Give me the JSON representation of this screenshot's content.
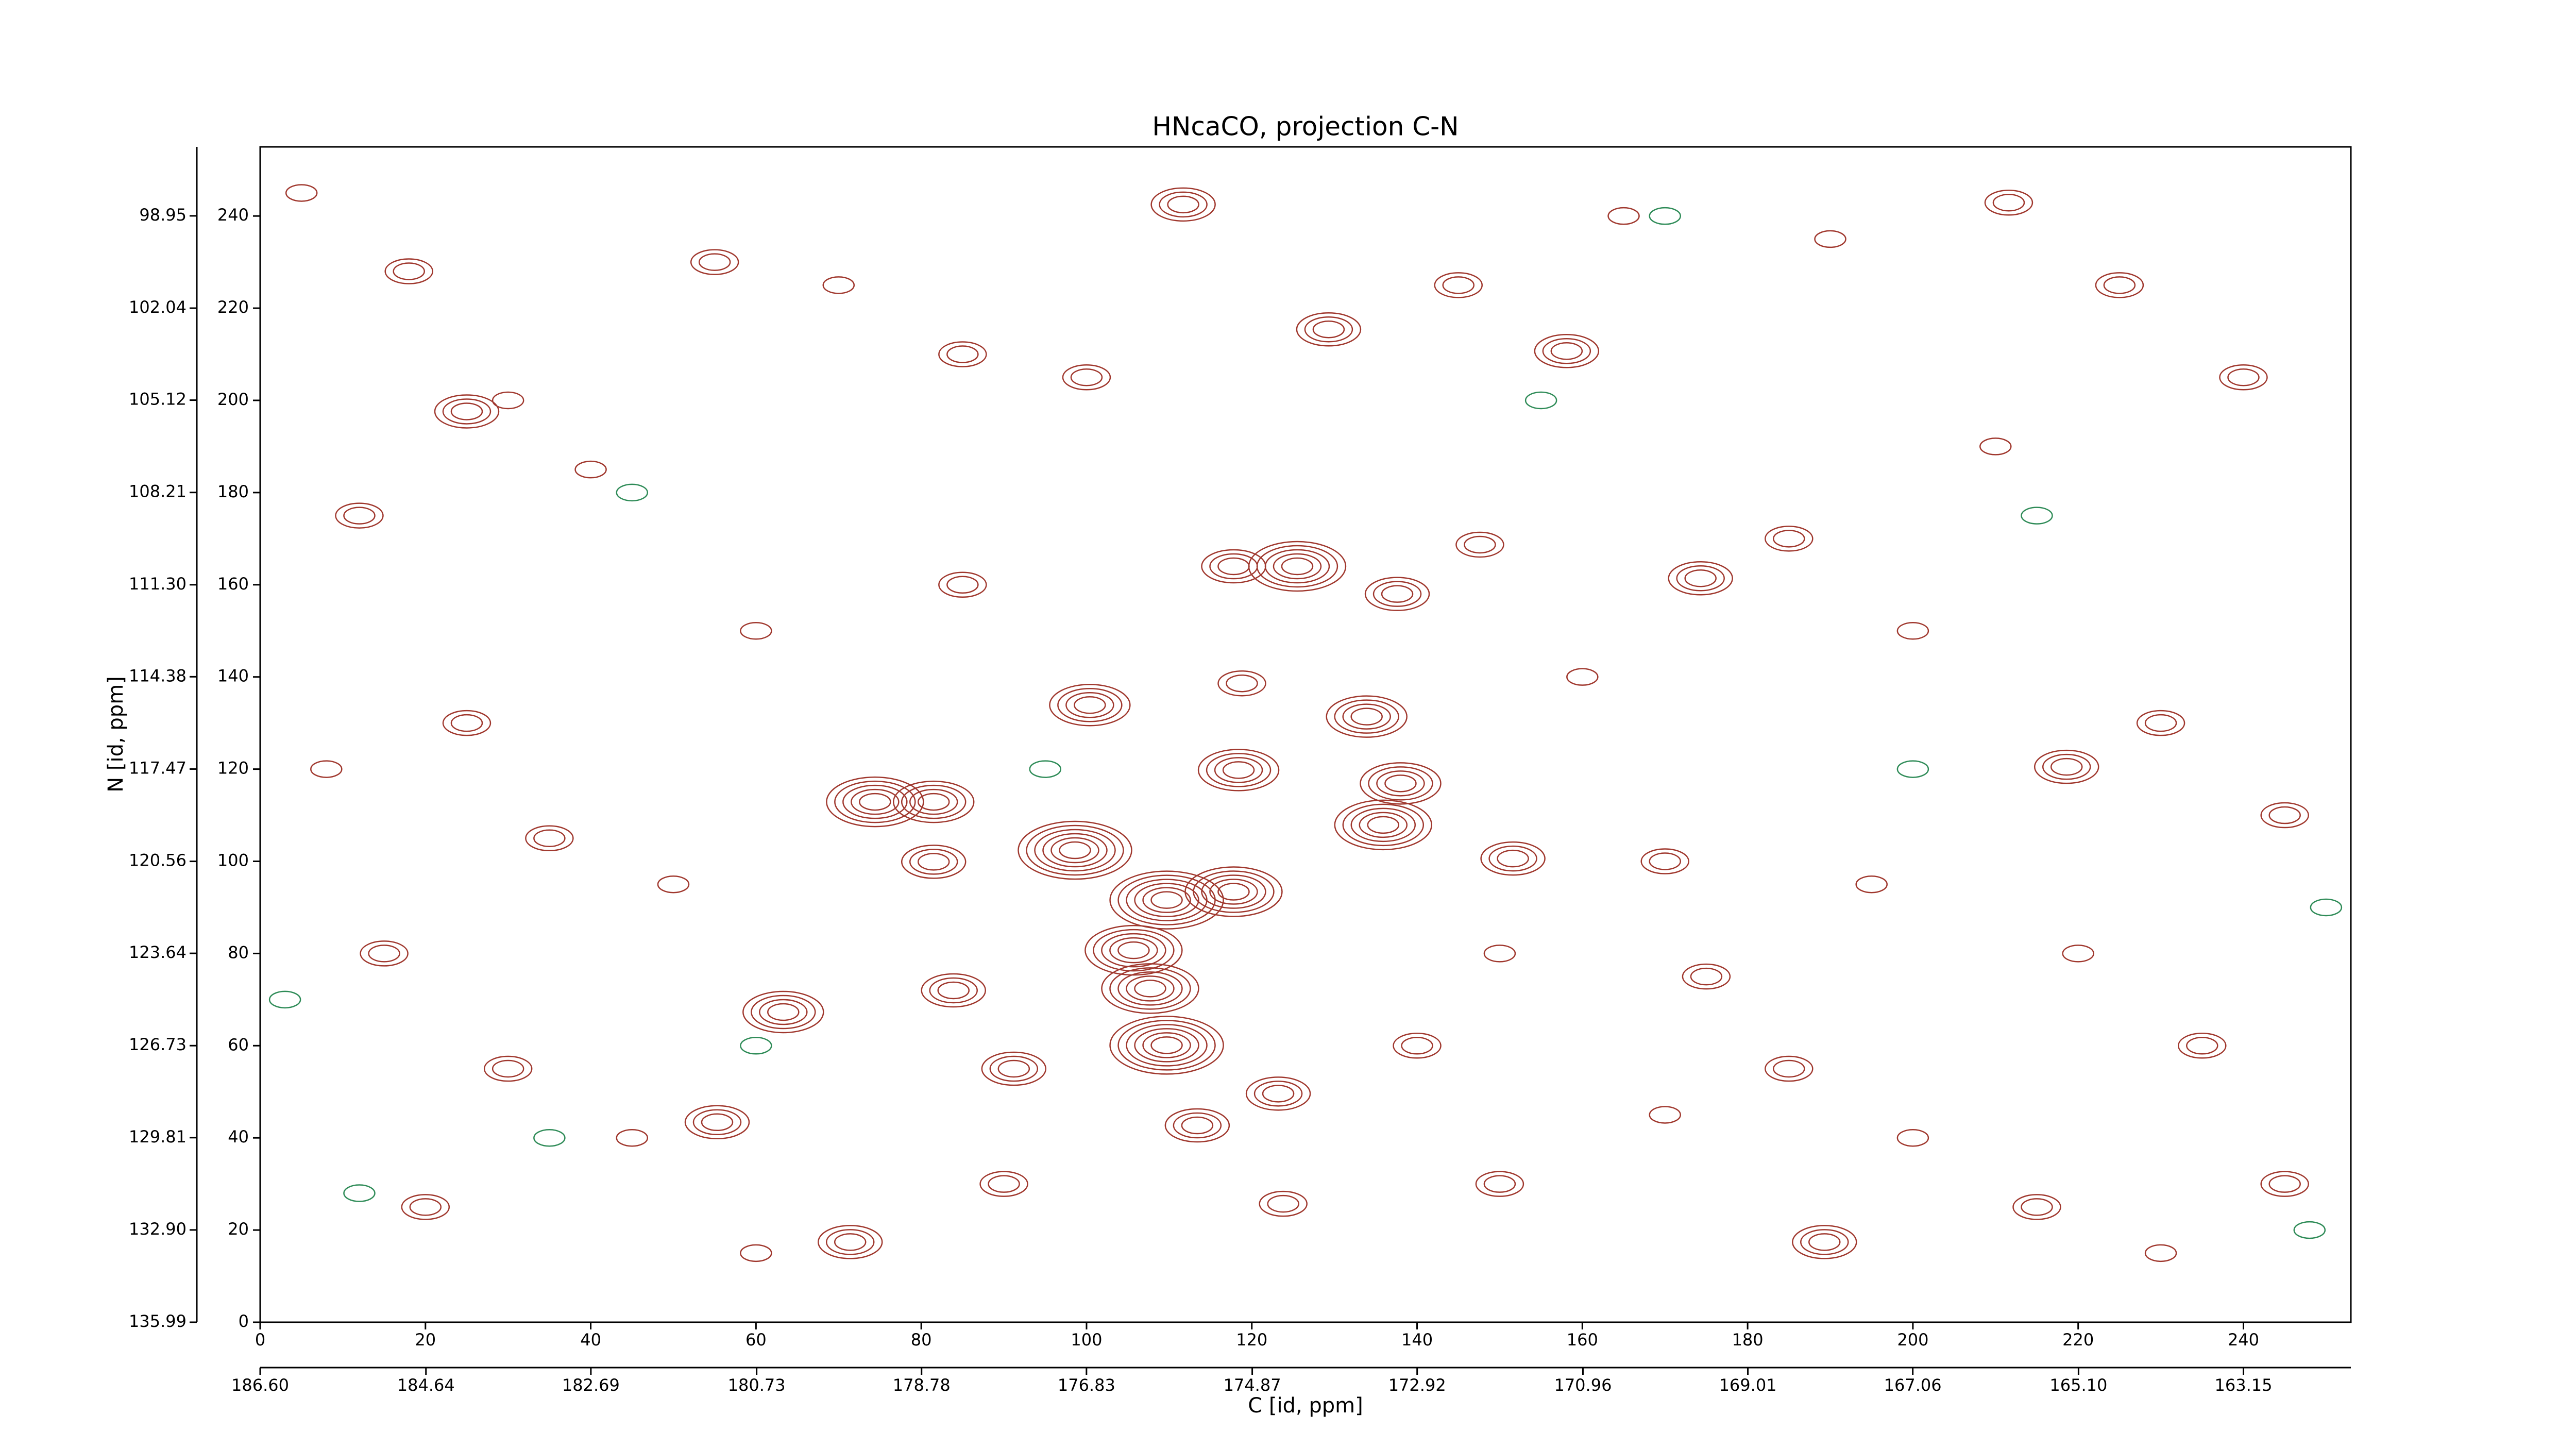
{
  "chart_data": {
    "type": "contour",
    "title": "HNcaCO, projection C-N",
    "x_label": "C [id, ppm]",
    "y_label": "N [id, ppm]",
    "xlim": [
      0,
      253
    ],
    "ylim": [
      0,
      255
    ],
    "xticks": [
      0,
      20,
      40,
      60,
      80,
      100,
      120,
      140,
      160,
      180,
      200,
      220,
      240
    ],
    "yticks": [
      0,
      20,
      40,
      60,
      80,
      100,
      120,
      140,
      160,
      180,
      200,
      220,
      240
    ],
    "x2lim": [
      186.6,
      161.88
    ],
    "x2ticks": [
      {
        "value": 186.6,
        "label": "186.60"
      },
      184.64,
      182.69,
      180.73,
      178.78,
      176.83,
      174.87,
      172.92,
      170.96,
      169.01,
      167.06,
      {
        "value": 165.1,
        "label": "165.10"
      },
      163.15
    ],
    "y2lim": [
      135.99,
      96.64
    ],
    "y2ticks": [
      135.99,
      {
        "value": 132.9,
        "label": "132.90"
      },
      129.81,
      126.73,
      123.64,
      120.56,
      117.47,
      114.38,
      {
        "value": 111.3,
        "label": "111.30"
      },
      108.21,
      105.12,
      102.04,
      98.95
    ],
    "series": [
      {
        "color": "#a0382e",
        "x": [
          111.7,
          129.3,
          158.1,
          125.5,
          117.8,
          137.6,
          147.6,
          118.8,
          133.9,
          100.4,
          81.5,
          74.4,
          118.4,
          138,
          98.6,
          109.7,
          117.8,
          135.9,
          81.5,
          151.6,
          105.7,
          107.7,
          109.7,
          91.2,
          63.3,
          83.9,
          55.3,
          113.4,
          123.2,
          123.8,
          211.6,
          25,
          218.6,
          174.3,
          189.3,
          71.4,
          5,
          18,
          30,
          12,
          40,
          55,
          70,
          85,
          60,
          25,
          8,
          35,
          50,
          15,
          30,
          45,
          20,
          60,
          90,
          150,
          170,
          185,
          200,
          215,
          230,
          245,
          235,
          220,
          245,
          230,
          200,
          185,
          210,
          240,
          225,
          190,
          165,
          145,
          100,
          85,
          160,
          170,
          195,
          175,
          140,
          150
        ],
        "y": [
          242.5,
          215.4,
          210.7,
          164,
          164,
          158,
          168.7,
          138.6,
          131.4,
          133.9,
          112.9,
          112.9,
          119.8,
          116.9,
          102.4,
          91.6,
          93.4,
          107.9,
          99.9,
          100.6,
          80.7,
          72.4,
          60.1,
          55,
          67.3,
          72,
          43.4,
          42.7,
          49.6,
          25.7,
          242.9,
          197.6,
          120.5,
          161.4,
          17.4,
          17.4,
          245,
          228,
          200,
          175,
          185,
          230,
          225,
          210,
          150,
          130,
          120,
          105,
          95,
          80,
          55,
          40,
          25,
          15,
          30,
          30,
          45,
          55,
          40,
          25,
          15,
          30,
          60,
          80,
          110,
          130,
          150,
          170,
          190,
          205,
          225,
          235,
          240,
          225,
          205,
          160,
          140,
          100,
          95,
          75,
          60,
          80
        ],
        "levels": [
          3,
          3,
          3,
          5,
          3,
          3,
          2,
          2,
          4,
          4,
          4,
          5,
          4,
          4,
          6,
          6,
          5,
          5,
          3,
          3,
          5,
          5,
          6,
          3,
          4,
          3,
          3,
          3,
          3,
          2,
          2,
          3,
          3,
          3,
          3,
          3,
          1,
          2,
          1,
          2,
          1,
          2,
          1,
          2,
          1,
          2,
          1,
          2,
          1,
          2,
          2,
          1,
          2,
          1,
          2,
          2,
          1,
          2,
          1,
          2,
          1,
          2,
          2,
          1,
          2,
          2,
          1,
          2,
          1,
          2,
          2,
          1,
          1,
          2,
          2,
          2,
          1,
          2,
          1,
          2,
          2,
          1
        ]
      },
      {
        "color": "#2e8b57",
        "x": [
          3,
          12,
          45,
          60,
          95,
          155,
          170,
          215,
          250,
          248,
          35,
          200
        ],
        "y": [
          70,
          28,
          180,
          60,
          120,
          200,
          240,
          175,
          90,
          20,
          40,
          120
        ],
        "levels": [
          1,
          1,
          1,
          1,
          1,
          1,
          1,
          1,
          1,
          1,
          1,
          1
        ]
      }
    ]
  }
}
